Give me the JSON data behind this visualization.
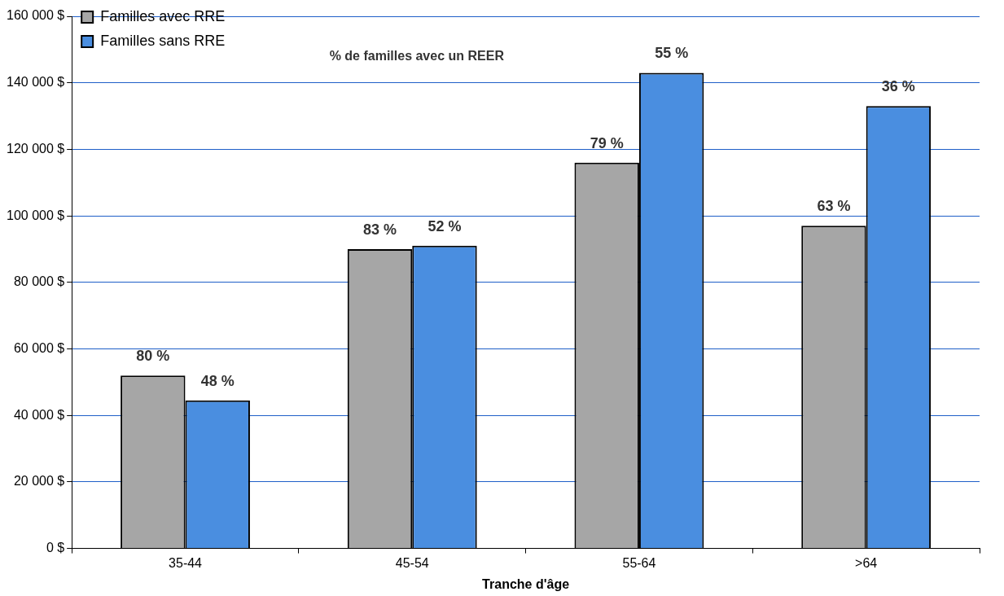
{
  "chart_data": {
    "type": "bar",
    "xlabel": "Tranche d'âge",
    "annotations": [
      "% de familles avec un REER",
      {
        "text": "80 %",
        "x": "35-44",
        "y": 52000
      },
      {
        "text": "48 %",
        "x": "35-44",
        "y": 44500
      },
      {
        "text": "83 %",
        "x": "45-54",
        "y": 90000
      },
      {
        "text": "52 %",
        "x": "45-54",
        "y": 91000
      },
      {
        "text": "79 %",
        "x": "55-64",
        "y": 116000
      },
      {
        "text": "55 %",
        "x": "55-64",
        "y": 143000
      },
      {
        "text": "63 %",
        "x": ">64",
        "y": 97000
      },
      {
        "text": "36 %",
        "x": ">64",
        "y": 133000
      }
    ],
    "categories": [
      "35-44",
      "45-54",
      "55-64",
      ">64"
    ],
    "series": [
      {
        "name": "Familles avec RRE",
        "color": "#a6a6a6",
        "values": [
          52000,
          90000,
          116000,
          97000
        ]
      },
      {
        "name": "Familles sans RRE",
        "color": "#4a8ee0",
        "values": [
          44500,
          91000,
          143000,
          133000
        ]
      }
    ],
    "ylim": [
      0,
      160000
    ],
    "yticks": [
      {
        "value": 0,
        "label": "0 $"
      },
      {
        "value": 20000,
        "label": "20 000 $"
      },
      {
        "value": 40000,
        "label": "40 000 $"
      },
      {
        "value": 60000,
        "label": "60 000 $"
      },
      {
        "value": 80000,
        "label": "80 000 $"
      },
      {
        "value": 100000,
        "label": "100 000 $"
      },
      {
        "value": 120000,
        "label": "120 000 $"
      },
      {
        "value": 140000,
        "label": "140 000 $"
      },
      {
        "value": 160000,
        "label": "160 000 $"
      }
    ],
    "grid": "y",
    "legend": "top left"
  }
}
